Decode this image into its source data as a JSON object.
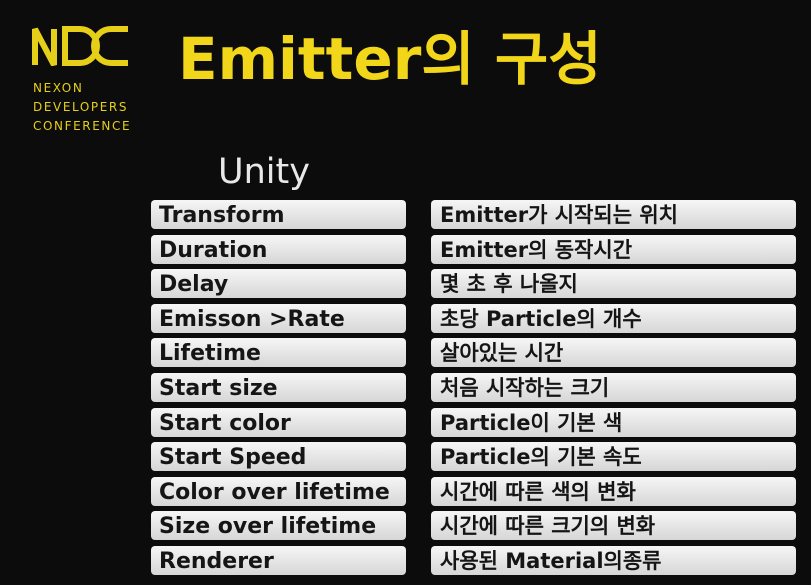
{
  "logo": {
    "mark": "NDC",
    "lines": [
      "NEXON",
      "DEVELOPERS",
      "CONFERENCE"
    ]
  },
  "title": "Emitter의 구성",
  "column_header": "Unity",
  "properties": [
    "Transform",
    "Duration",
    "Delay",
    "Emisson >Rate",
    "Lifetime",
    "Start size",
    "Start color",
    "Start Speed",
    "Color over lifetime",
    "Size over lifetime",
    "Renderer"
  ],
  "descriptions": [
    "Emitter가 시작되는 위치",
    "Emitter의 동작시간",
    "몇 초 후 나올지",
    "초당 Particle의 개수",
    "살아있는 시간",
    "처음 시작하는 크기",
    "Particle이 기본 색",
    "Particle의 기본 속도",
    "시간에 따른 색의 변화",
    "시간에 따른 크기의 변화",
    "사용된 Material의종류"
  ],
  "colors": {
    "background": "#0c0c0c",
    "accent": "#f1d61a",
    "cell": "#e6e6e6"
  }
}
